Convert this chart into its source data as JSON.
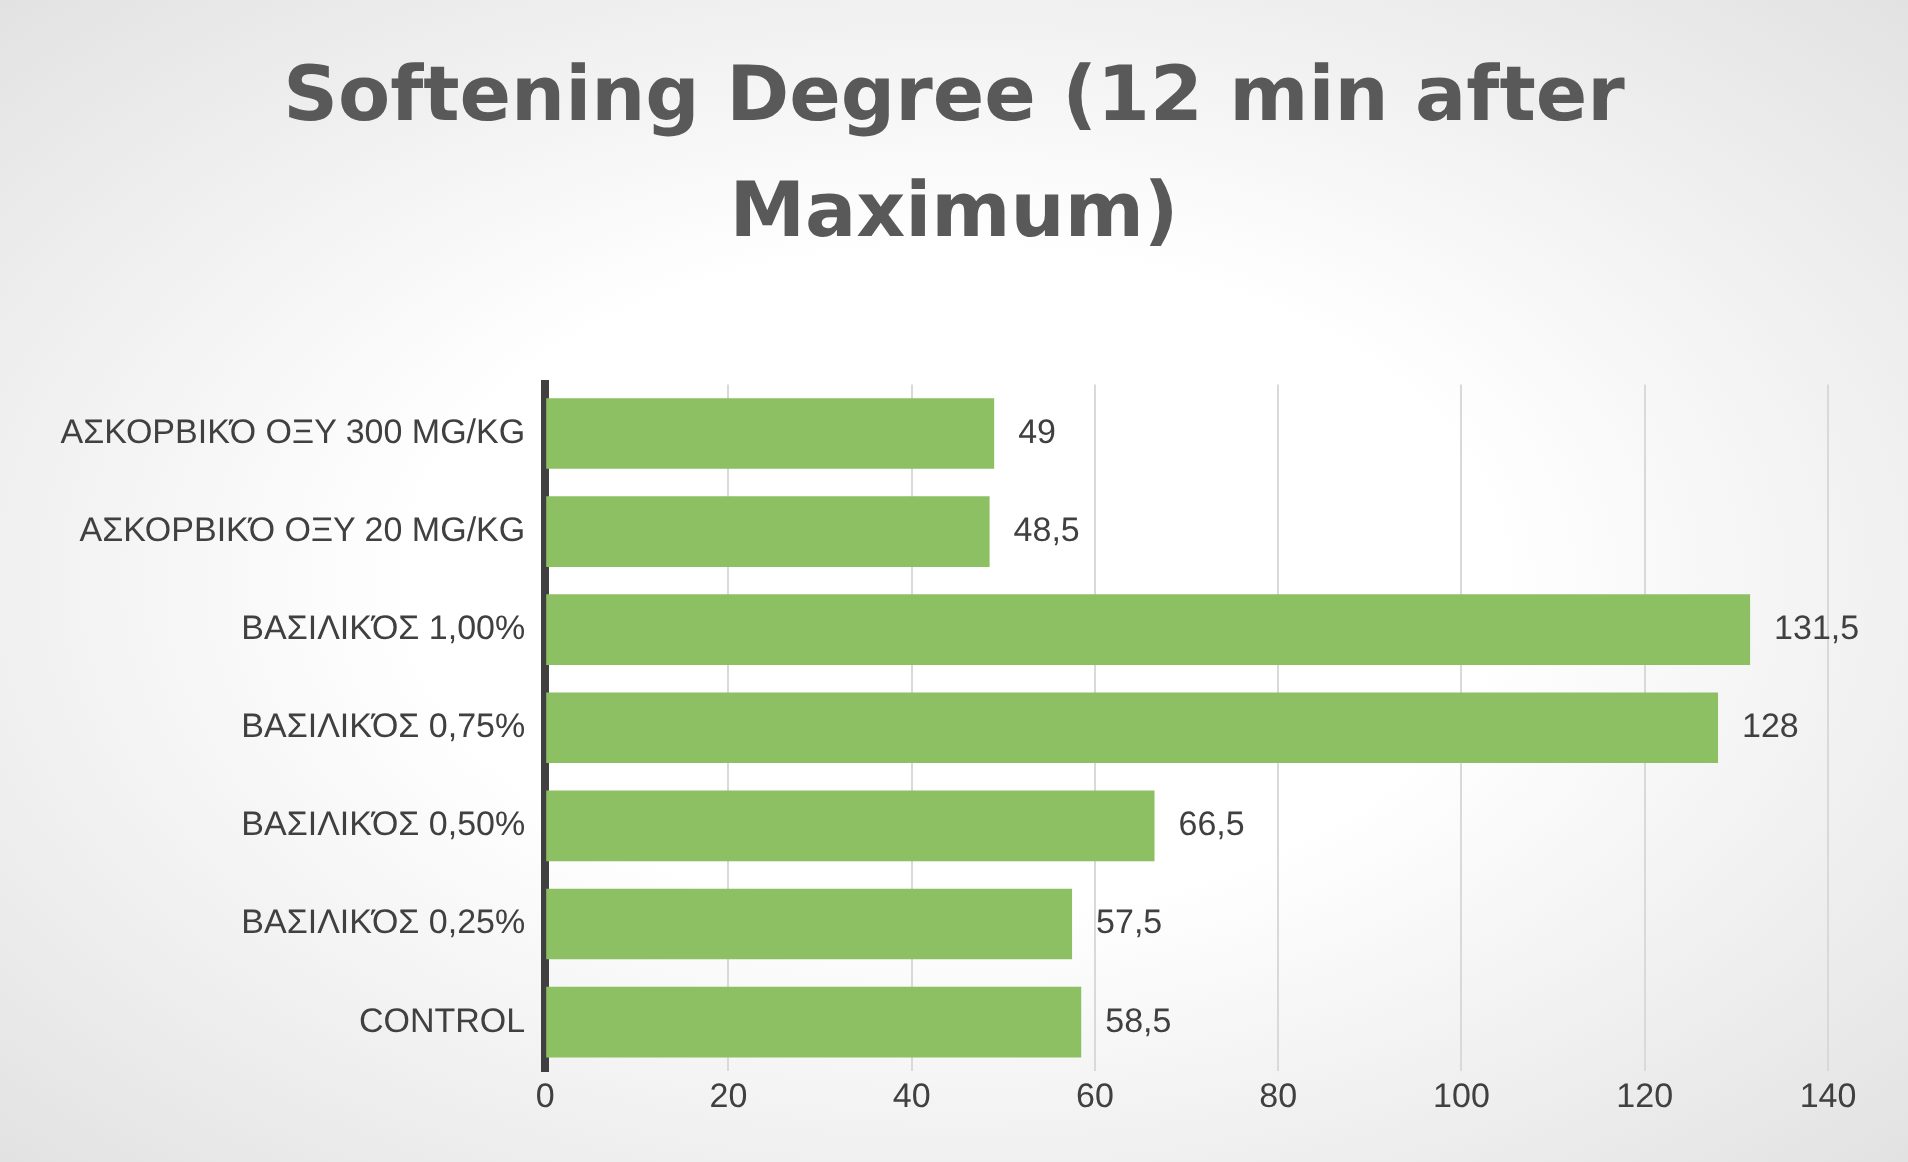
{
  "chart_data": {
    "type": "bar",
    "orientation": "horizontal",
    "title": "Softening Degree (12 min after Maximum)",
    "categories": [
      "ΑΣΚΟΡΒΙΚΌ ΟΞΥ 300 MG/KG",
      "ΑΣΚΟΡΒΙΚΌ ΟΞΥ 20 MG/KG",
      "ΒΑΣΙΛΙΚΌΣ 1,00%",
      "ΒΑΣΙΛΙΚΌΣ 0,75%",
      "ΒΑΣΙΛΙΚΌΣ 0,50%",
      "ΒΑΣΙΛΙΚΌΣ 0,25%",
      "CONTROL"
    ],
    "values": [
      49,
      48.5,
      131.5,
      128,
      66.5,
      57.5,
      58.5
    ],
    "value_labels": [
      "49",
      "48,5",
      "131,5",
      "128",
      "66,5",
      "57,5",
      "58,5"
    ],
    "color": "#8cc063",
    "xlim": [
      0,
      140
    ],
    "xticks": [
      0,
      20,
      40,
      60,
      80,
      100,
      120,
      140
    ],
    "grid": "x",
    "legend": false
  }
}
